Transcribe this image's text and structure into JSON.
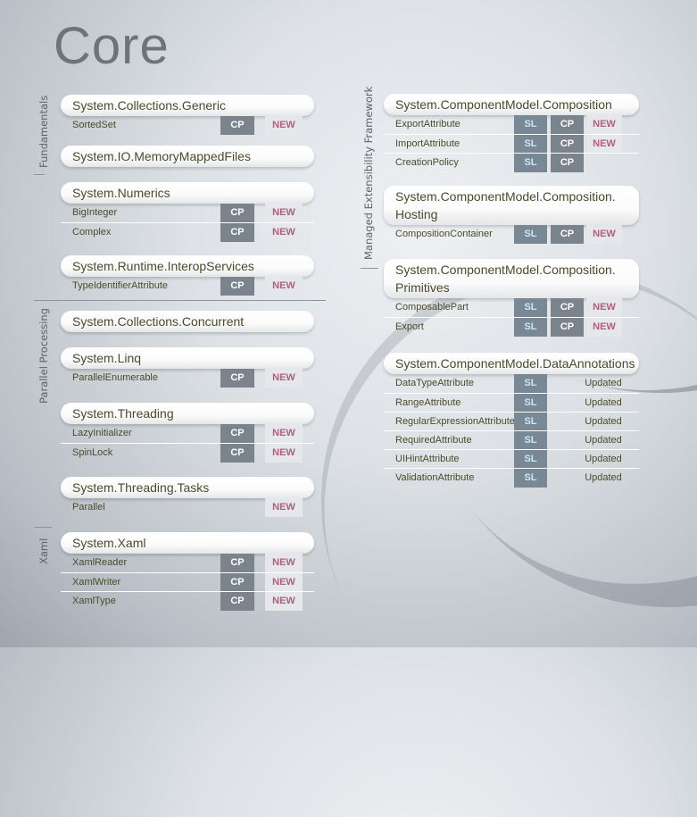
{
  "title": "Core",
  "sections": {
    "fundamentals": "Fundamentals",
    "parallel": "Parallel Processing",
    "xaml": "Xaml",
    "mef": "Managed Extensibility Framework"
  },
  "colors": {
    "cp": "#7b838c",
    "sl": "#7a8896",
    "sl_text": "#c7e8f7",
    "new_text": "#b35d7d",
    "text": "#4b4a2c"
  },
  "left": [
    {
      "name": "System.Collections.Generic",
      "rows": [
        {
          "label": "SortedSet",
          "tags": [
            "CP",
            "NEW"
          ]
        }
      ]
    },
    {
      "name": "System.IO.MemoryMappedFiles",
      "rows": []
    },
    {
      "name": "System.Numerics",
      "rows": [
        {
          "label": "BigInteger",
          "tags": [
            "CP",
            "NEW"
          ]
        },
        {
          "label": "Complex",
          "tags": [
            "CP",
            "NEW"
          ]
        }
      ]
    },
    {
      "name": "System.Runtime.InteropServices",
      "rows": [
        {
          "label": "TypeIdentifierAttribute",
          "tags": [
            "CP",
            "NEW"
          ]
        }
      ]
    },
    {
      "name": "System.Collections.Concurrent",
      "rows": []
    },
    {
      "name": "System.Linq",
      "rows": [
        {
          "label": "ParallelEnumerable",
          "tags": [
            "CP",
            "NEW"
          ]
        }
      ]
    },
    {
      "name": "System.Threading",
      "rows": [
        {
          "label": "LazyInitializer",
          "tags": [
            "CP",
            "NEW"
          ]
        },
        {
          "label": "SpinLock",
          "tags": [
            "CP",
            "NEW"
          ]
        }
      ]
    },
    {
      "name": "System.Threading.Tasks",
      "rows": [
        {
          "label": "Parallel",
          "tags": [
            "NEW"
          ]
        }
      ]
    },
    {
      "name": "System.Xaml",
      "rows": [
        {
          "label": "XamlReader",
          "tags": [
            "CP",
            "NEW"
          ]
        },
        {
          "label": "XamlWriter",
          "tags": [
            "CP",
            "NEW"
          ]
        },
        {
          "label": "XamlType",
          "tags": [
            "CP",
            "NEW"
          ]
        }
      ]
    }
  ],
  "right": [
    {
      "name": "System.ComponentModel.Composition",
      "rows": [
        {
          "label": "ExportAttribute",
          "tags": [
            "SL",
            "CP",
            "NEW"
          ]
        },
        {
          "label": "ImportAttribute",
          "tags": [
            "SL",
            "CP",
            "NEW"
          ]
        },
        {
          "label": "CreationPolicy",
          "tags": [
            "SL",
            "CP"
          ]
        }
      ]
    },
    {
      "name": "System.ComponentModel.Composition. Hosting",
      "rows": [
        {
          "label": "CompositionContainer",
          "tags": [
            "SL",
            "CP",
            "NEW"
          ]
        }
      ]
    },
    {
      "name": "System.ComponentModel.Composition. Primitives",
      "rows": [
        {
          "label": "ComposablePart",
          "tags": [
            "SL",
            "CP",
            "NEW"
          ]
        },
        {
          "label": "Export",
          "tags": [
            "SL",
            "CP",
            "NEW"
          ]
        }
      ]
    },
    {
      "name": "System.ComponentModel.DataAnnotations",
      "rows": [
        {
          "label": "DataTypeAttribute",
          "tags": [
            "SL",
            "Updated"
          ]
        },
        {
          "label": "RangeAttribute",
          "tags": [
            "SL",
            "Updated"
          ]
        },
        {
          "label": "RegularExpressionAttribute",
          "tags": [
            "SL",
            "Updated"
          ]
        },
        {
          "label": "RequiredAttribute",
          "tags": [
            "SL",
            "Updated"
          ]
        },
        {
          "label": "UIHintAttribute",
          "tags": [
            "SL",
            "Updated"
          ]
        },
        {
          "label": "ValidationAttribute",
          "tags": [
            "SL",
            "Updated"
          ]
        }
      ]
    }
  ]
}
